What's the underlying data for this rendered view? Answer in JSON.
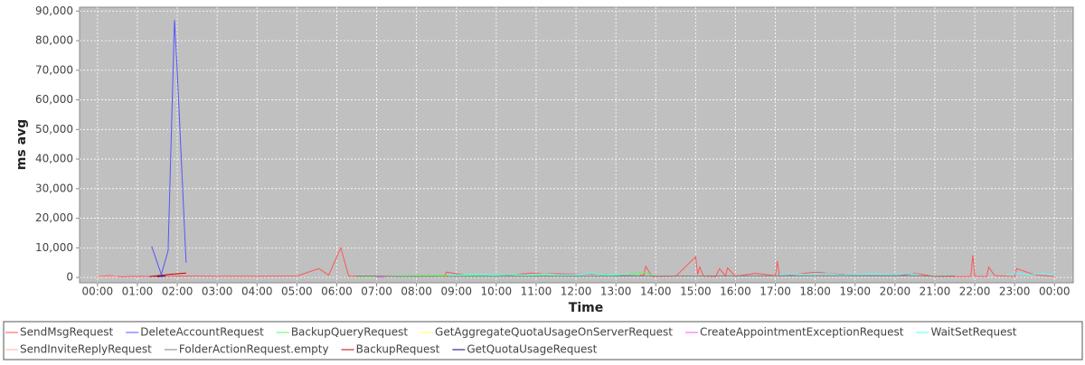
{
  "chart_data": {
    "type": "line",
    "x_label": "Time",
    "y_label": "ms avg",
    "xlim": [
      -0.45,
      24.47
    ],
    "ylim": [
      -1800,
      91300
    ],
    "grid": true,
    "xticks": [
      {
        "value": 0,
        "label": "00:00"
      },
      {
        "value": 1,
        "label": "01:00"
      },
      {
        "value": 2,
        "label": "02:00"
      },
      {
        "value": 3,
        "label": "03:00"
      },
      {
        "value": 4,
        "label": "04:00"
      },
      {
        "value": 5,
        "label": "05:00"
      },
      {
        "value": 6,
        "label": "06:00"
      },
      {
        "value": 7,
        "label": "07:00"
      },
      {
        "value": 8,
        "label": "08:00"
      },
      {
        "value": 9,
        "label": "09:00"
      },
      {
        "value": 10,
        "label": "10:00"
      },
      {
        "value": 11,
        "label": "11:00"
      },
      {
        "value": 12,
        "label": "12:00"
      },
      {
        "value": 13,
        "label": "13:00"
      },
      {
        "value": 14,
        "label": "14:00"
      },
      {
        "value": 15,
        "label": "15:00"
      },
      {
        "value": 16,
        "label": "16:00"
      },
      {
        "value": 17,
        "label": "17:00"
      },
      {
        "value": 18,
        "label": "18:00"
      },
      {
        "value": 19,
        "label": "19:00"
      },
      {
        "value": 20,
        "label": "20:00"
      },
      {
        "value": 21,
        "label": "21:00"
      },
      {
        "value": 22,
        "label": "22:00"
      },
      {
        "value": 23,
        "label": "23:00"
      },
      {
        "value": 24,
        "label": "00:00"
      }
    ],
    "yticks": [
      0,
      {
        "value": 10000,
        "label": "10,000"
      },
      {
        "value": 20000,
        "label": "20,000"
      },
      {
        "value": 30000,
        "label": "30,000"
      },
      {
        "value": 40000,
        "label": "40,000"
      },
      {
        "value": 50000,
        "label": "50,000"
      },
      {
        "value": 60000,
        "label": "60,000"
      },
      {
        "value": 70000,
        "label": "70,000"
      },
      {
        "value": 80000,
        "label": "80,000"
      },
      {
        "value": 90000,
        "label": "90,000"
      }
    ],
    "series": [
      {
        "name": "SendMsgRequest",
        "color": "#ff5555",
        "x": [
          0,
          0.3,
          0.6,
          1.0,
          1.5,
          2.0,
          3.0,
          4.0,
          5.0,
          5.55,
          5.8,
          6.1,
          6.3,
          7.0,
          7.5,
          8.0,
          8.7,
          8.75,
          9.3,
          10.0,
          10.9,
          11.8,
          12.5,
          13.0,
          13.7,
          13.75,
          13.9,
          14.5,
          15.0,
          15.05,
          15.1,
          15.2,
          15.5,
          15.6,
          15.75,
          15.8,
          16.0,
          16.5,
          17.0,
          17.05,
          17.1,
          18.0,
          19.0,
          20.0,
          20.5,
          21.0,
          21.9,
          21.95,
          22.0,
          22.3,
          22.35,
          22.5,
          23.0,
          23.05,
          23.5,
          24.0
        ],
        "values": [
          300,
          600,
          200,
          400,
          300,
          500,
          400,
          400,
          500,
          3000,
          800,
          10000,
          400,
          500,
          300,
          400,
          300,
          1800,
          600,
          500,
          1500,
          1200,
          1200,
          600,
          800,
          3800,
          300,
          400,
          7000,
          1000,
          3500,
          400,
          300,
          3000,
          500,
          3200,
          400,
          1400,
          600,
          5500,
          400,
          1800,
          600,
          500,
          1400,
          300,
          300,
          7500,
          400,
          300,
          3500,
          600,
          300,
          3000,
          900,
          300
        ]
      },
      {
        "name": "DeleteAccountRequest",
        "color": "#5555ff",
        "x": [
          1.36,
          1.6,
          1.77,
          1.93,
          2.0,
          2.22
        ],
        "values": [
          10500,
          1000,
          9000,
          87000,
          70000,
          5000
        ]
      },
      {
        "name": "BackupQueryRequest",
        "color": "#55ff55",
        "x": [
          6.5,
          8.0,
          9.0,
          10.0,
          11.0,
          12.0,
          13.0,
          13.7,
          14.0
        ],
        "values": [
          200,
          600,
          700,
          500,
          600,
          400,
          700,
          1800,
          300
        ]
      },
      {
        "name": "GetAggregateQuotaUsageOnServerRequest",
        "color": "#ffff55",
        "x": [
          8.5,
          8.7
        ],
        "values": [
          200,
          200
        ]
      },
      {
        "name": "CreateAppointmentExceptionRequest",
        "color": "#ff55ff",
        "x": [
          7.0,
          7.2
        ],
        "values": [
          100,
          100
        ]
      },
      {
        "name": "WaitSetRequest",
        "color": "#55ffff",
        "x": [
          8.8,
          9.2,
          9.6,
          10.0,
          10.4,
          10.8,
          11.2,
          11.6,
          12.0,
          12.4,
          12.8,
          13.2,
          13.6,
          14.0,
          17.1,
          17.5,
          17.9,
          18.3,
          18.7,
          19.1,
          19.5,
          19.9,
          20.3,
          20.6,
          21.0,
          22.8,
          23.1,
          23.4,
          23.7,
          24.0
        ],
        "values": [
          700,
          900,
          1200,
          800,
          1100,
          700,
          1300,
          900,
          1000,
          1400,
          800,
          1100,
          900,
          null,
          900,
          1200,
          1000,
          1300,
          800,
          1100,
          1200,
          900,
          1300,
          1000,
          null,
          900,
          1500,
          800,
          1400,
          1000
        ]
      },
      {
        "name": "SendInviteReplyRequest",
        "color": "#ffafaf",
        "x": [
          0,
          0.5
        ],
        "values": [
          200,
          300
        ]
      },
      {
        "name": "FolderActionRequest.empty",
        "color": "#808080",
        "x": [
          6.5,
          7.0,
          7.5,
          20.4,
          21.0,
          21.5
        ],
        "values": [
          400,
          500,
          300,
          600,
          400,
          500
        ]
      },
      {
        "name": "BackupRequest",
        "color": "#c00000",
        "x": [
          1.3,
          1.8,
          2.22
        ],
        "values": [
          300,
          1000,
          1500
        ]
      },
      {
        "name": "GetQuotaUsageRequest",
        "color": "#000080",
        "x": [
          1.5,
          1.7
        ],
        "values": [
          300,
          400
        ]
      }
    ]
  }
}
